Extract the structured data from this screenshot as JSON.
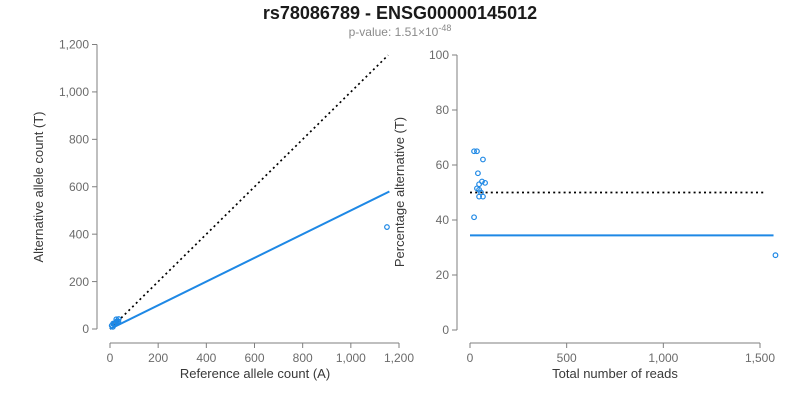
{
  "header": {
    "title": "rs78086789 - ENSG00000145012",
    "p_label": "p-value: 1.51×10",
    "p_exponent": "-48"
  },
  "accent_color": "#1E88E5",
  "chart_data": [
    {
      "type": "scatter",
      "name": "allele-counts-panel",
      "xlabel": "Reference allele count (A)",
      "ylabel": "Alternative allele count (T)",
      "xlim": [
        0,
        1200
      ],
      "ylim": [
        0,
        1200
      ],
      "xticks": [
        0,
        200,
        400,
        600,
        800,
        1000,
        1200
      ],
      "yticks": [
        0,
        200,
        400,
        600,
        800,
        1000,
        1200
      ],
      "grid": false,
      "point_color": "#1E88E5",
      "points": [
        [
          7,
          14
        ],
        [
          13,
          23
        ],
        [
          12,
          9
        ],
        [
          17,
          19
        ],
        [
          18,
          23
        ],
        [
          22,
          25
        ],
        [
          23,
          24
        ],
        [
          24,
          23
        ],
        [
          26,
          41
        ],
        [
          29,
          33
        ],
        [
          29,
          29
        ],
        [
          35,
          32
        ],
        [
          36,
          42
        ],
        [
          1150,
          430
        ]
      ],
      "lines": [
        {
          "name": "identity-line",
          "dash": "dotted",
          "color": "#000000",
          "x": [
            0,
            1155
          ],
          "y": [
            0,
            1155
          ]
        },
        {
          "name": "fit-line",
          "dash": "solid",
          "color": "#1E88E5",
          "x": [
            0,
            1160
          ],
          "y": [
            0,
            580
          ]
        }
      ]
    },
    {
      "type": "scatter",
      "name": "percentage-panel",
      "xlabel": "Total number of reads",
      "ylabel": "Percentage alternative (T)",
      "xlim": [
        0,
        1500
      ],
      "ylim": [
        0,
        100
      ],
      "xticks": [
        0,
        500,
        1000,
        1500
      ],
      "yticks": [
        0,
        20,
        40,
        60,
        80,
        100
      ],
      "grid": false,
      "point_color": "#1E88E5",
      "points": [
        [
          21,
          65
        ],
        [
          36,
          65
        ],
        [
          67,
          62
        ],
        [
          41,
          57
        ],
        [
          62,
          54
        ],
        [
          47,
          53
        ],
        [
          78,
          53.5
        ],
        [
          36,
          51.5
        ],
        [
          47,
          51
        ],
        [
          57,
          50
        ],
        [
          47,
          48.5
        ],
        [
          67,
          48.5
        ],
        [
          21,
          41
        ],
        [
          1580,
          27.2
        ]
      ],
      "lines": [
        {
          "name": "expected-50pct-line",
          "dash": "dotted",
          "color": "#000000",
          "x": [
            0,
            1530
          ],
          "y": [
            50,
            50
          ]
        },
        {
          "name": "overall-fraction-line",
          "dash": "solid",
          "color": "#1E88E5",
          "x": [
            0,
            1570
          ],
          "y": [
            34.4,
            34.4
          ]
        }
      ]
    }
  ]
}
